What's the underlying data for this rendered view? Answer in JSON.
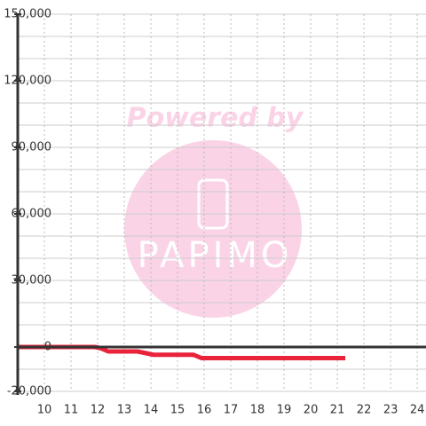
{
  "chart_data": {
    "type": "line",
    "x": [
      9,
      11.9,
      12.1,
      12.4,
      13.5,
      13.7,
      14.1,
      15.6,
      15.9,
      21.3
    ],
    "series": [
      {
        "color": "#e8233a",
        "values": [
          0,
          0,
          -500,
          -2000,
          -2000,
          -2500,
          -3500,
          -3500,
          -5000,
          -5000
        ]
      }
    ],
    "xlim": [
      9,
      24.33
    ],
    "xticks": [
      10,
      11,
      12,
      13,
      14,
      15,
      16,
      17,
      18,
      19,
      20,
      21,
      22,
      23,
      24
    ],
    "ylim": [
      -20000,
      150000
    ],
    "yticks": [
      {
        "value": -20000,
        "label": "-20,000"
      },
      0,
      {
        "value": 30000,
        "label": "30,000"
      },
      {
        "value": 60000,
        "label": "60,000"
      },
      {
        "value": 90000,
        "label": "90,000"
      },
      {
        "value": 120000,
        "label": "120,000"
      },
      {
        "value": 150000,
        "label": "150,000"
      }
    ],
    "y_minor_grid": [
      -10000,
      10000,
      20000,
      40000,
      50000,
      70000,
      80000,
      100000,
      110000,
      130000,
      140000
    ],
    "grid": true,
    "watermark": {
      "line1": "Powered by",
      "line2": "PAPIMO"
    }
  }
}
